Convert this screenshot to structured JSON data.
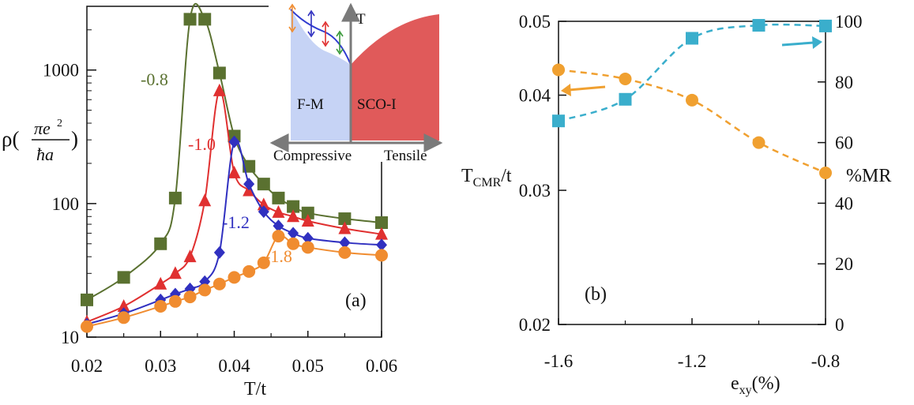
{
  "chart_data": [
    {
      "panel": "a",
      "type": "line",
      "panel_label": "(a)",
      "xlabel": "T/t",
      "ylabel_prefix": "ρ(",
      "ylabel_num": "πe",
      "ylabel_sup": "2",
      "ylabel_den": "ħa",
      "ylabel_suffix": ")",
      "xlim": [
        0.02,
        0.06
      ],
      "ylim": [
        10,
        3000
      ],
      "y_scale": "log",
      "x_ticks": [
        "0.02",
        "0.03",
        "0.04",
        "0.05",
        "0.06"
      ],
      "x_tick_values": [
        0.02,
        0.03,
        0.04,
        0.05,
        0.06
      ],
      "y_ticks": [
        "10",
        "100",
        "1000"
      ],
      "y_tick_values": [
        10,
        100,
        1000
      ],
      "series": [
        {
          "label": "-0.8",
          "color": "#5a7130",
          "marker": "square",
          "x": [
            0.02,
            0.025,
            0.03,
            0.032,
            0.034,
            0.036,
            0.038,
            0.04,
            0.042,
            0.044,
            0.046,
            0.048,
            0.05,
            0.055,
            0.06
          ],
          "y": [
            19,
            28,
            50,
            110,
            2400,
            2400,
            950,
            320,
            190,
            140,
            110,
            95,
            85,
            77,
            72
          ]
        },
        {
          "label": "-1.0",
          "color": "#e03030",
          "marker": "triangle",
          "x": [
            0.02,
            0.025,
            0.03,
            0.032,
            0.034,
            0.036,
            0.038,
            0.04,
            0.042,
            0.044,
            0.046,
            0.048,
            0.05,
            0.055,
            0.06
          ],
          "y": [
            13,
            17,
            25,
            30,
            40,
            105,
            700,
            170,
            125,
            98,
            86,
            80,
            74,
            65,
            59
          ]
        },
        {
          "label": "-1.2",
          "color": "#3030c0",
          "marker": "diamond",
          "x": [
            0.02,
            0.025,
            0.03,
            0.032,
            0.034,
            0.036,
            0.038,
            0.04,
            0.042,
            0.044,
            0.046,
            0.048,
            0.05,
            0.055,
            0.06
          ],
          "y": [
            12.5,
            15,
            19,
            21,
            23,
            26,
            43,
            290,
            140,
            87,
            68,
            60,
            55,
            51,
            49
          ]
        },
        {
          "label": "-1.8",
          "color": "#f08c30",
          "marker": "circle",
          "x": [
            0.02,
            0.025,
            0.03,
            0.032,
            0.034,
            0.036,
            0.038,
            0.04,
            0.042,
            0.044,
            0.046,
            0.048,
            0.05,
            0.055,
            0.06
          ],
          "y": [
            12,
            14,
            17,
            18.5,
            20,
            22.5,
            25,
            28,
            31,
            36,
            57,
            50,
            47,
            43,
            41
          ]
        }
      ],
      "inset": {
        "y_axis_label": "T",
        "left_region_label": "F-M",
        "right_region_label": "SCO-I",
        "left_axis_label": "Compressive",
        "right_axis_label": "Tensile",
        "left_region_color": "#c6d3f5",
        "right_region_color": "#e05a5a"
      }
    },
    {
      "panel": "b",
      "type": "line",
      "panel_label": "(b)",
      "xlabel_main": "e",
      "xlabel_sub": "xy",
      "xlabel_suffix": "(%)",
      "ylabel_left_main": "T",
      "ylabel_left_sub": "CMR",
      "ylabel_left_suffix": "/t",
      "ylabel_right": "%MR",
      "xlim": [
        -1.6,
        -0.8
      ],
      "ylim_left": [
        0.02,
        0.05
      ],
      "ylim_right": [
        0,
        100
      ],
      "y_left_scale": "log",
      "x_ticks": [
        "-1.6",
        "-1.2",
        "-0.8"
      ],
      "x_tick_values": [
        -1.6,
        -1.2,
        -0.8
      ],
      "y_left_ticks": [
        "0.02",
        "0.03",
        "0.04",
        "0.05"
      ],
      "y_left_tick_values": [
        0.02,
        0.03,
        0.04,
        0.05
      ],
      "y_right_ticks": [
        "0",
        "20",
        "40",
        "60",
        "80",
        "100"
      ],
      "y_right_tick_values": [
        0,
        20,
        40,
        60,
        80,
        100
      ],
      "series": [
        {
          "axis": "left",
          "color": "#3aaecc",
          "marker": "square",
          "x": [
            -1.6,
            -1.4,
            -1.2,
            -1.0,
            -0.8
          ],
          "y": [
            0.037,
            0.0395,
            0.0475,
            0.0494,
            0.0493
          ]
        },
        {
          "axis": "right",
          "color": "#f0a030",
          "marker": "circle",
          "x": [
            -1.6,
            -1.4,
            -1.2,
            -1.0,
            -0.8
          ],
          "y": [
            84,
            81,
            74,
            60,
            50
          ]
        }
      ]
    }
  ]
}
